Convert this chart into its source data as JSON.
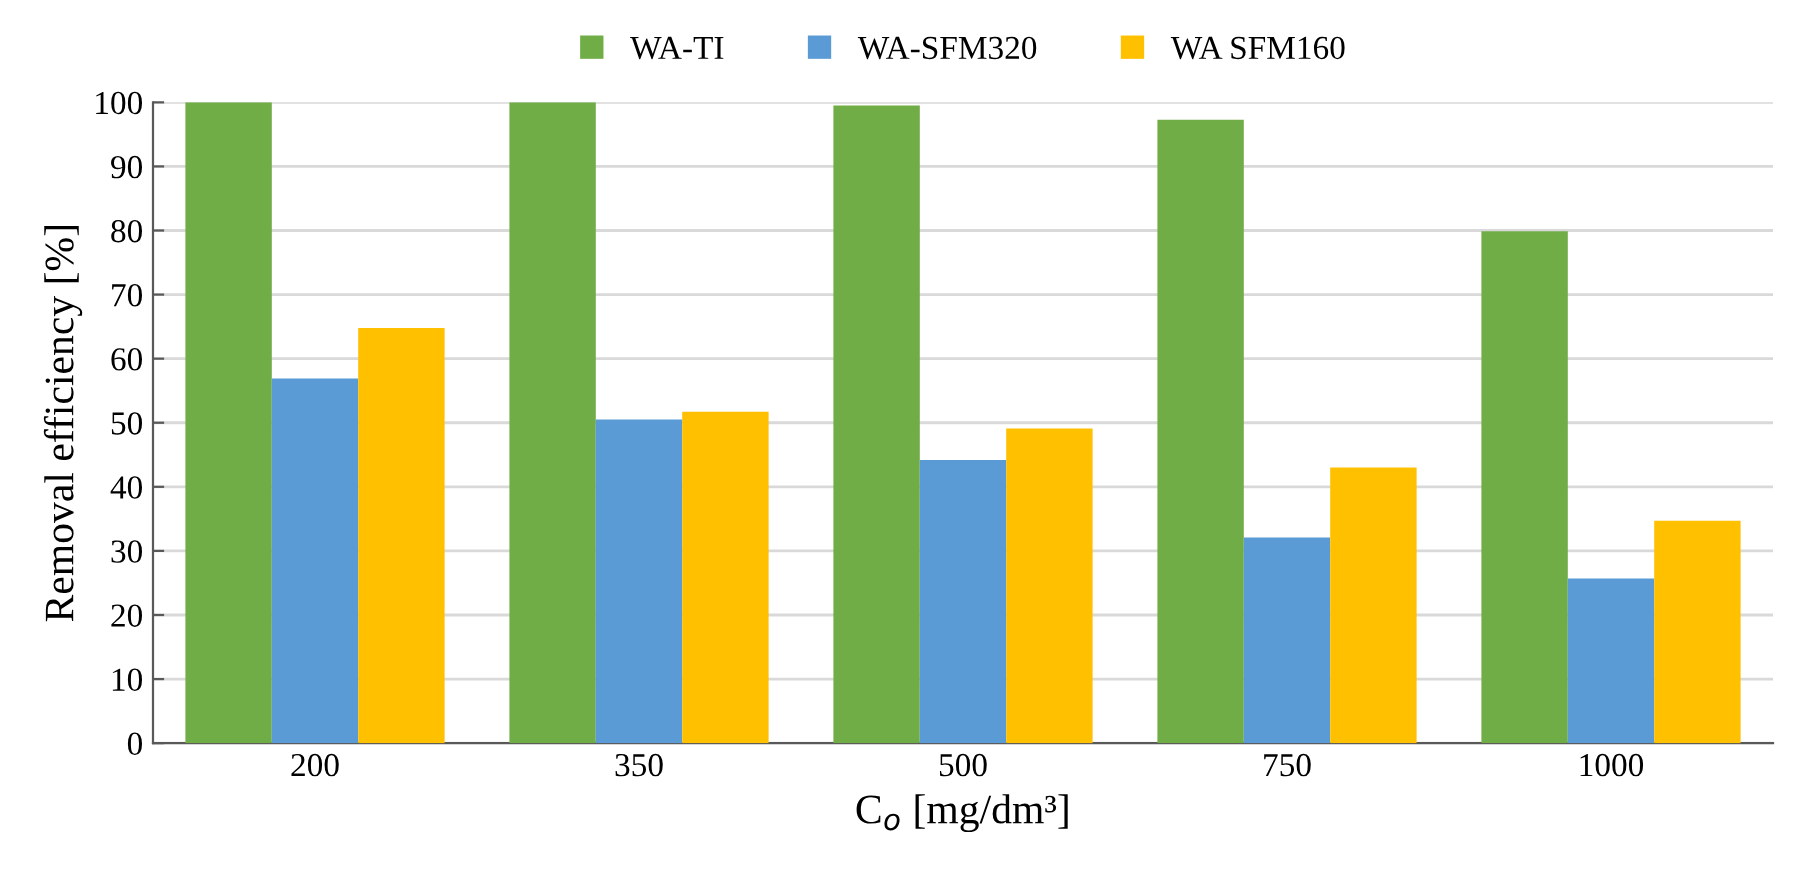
{
  "chart_data": {
    "type": "bar",
    "xlabel": "C$_{o}$ [mg/dm³]",
    "ylabel": "Removal efficiency [%]",
    "categories": [
      "200",
      "350",
      "500",
      "750",
      "1000"
    ],
    "series": [
      {
        "name": "WA-TI",
        "color": "#70ad47",
        "values": [
          100,
          100,
          99.5,
          97.3,
          79.9
        ]
      },
      {
        "name": "WA-SFM320",
        "color": "#5b9bd5",
        "values": [
          56.9,
          50.5,
          44.2,
          32.1,
          25.7
        ]
      },
      {
        "name": "WA SFM160",
        "color": "#ffc000",
        "values": [
          64.8,
          51.7,
          49.1,
          43.0,
          34.7
        ]
      }
    ],
    "ylim": [
      0,
      100
    ],
    "yticks": [
      0,
      10,
      20,
      30,
      40,
      50,
      60,
      70,
      80,
      90,
      100
    ],
    "grid": "y",
    "legend": "top"
  }
}
